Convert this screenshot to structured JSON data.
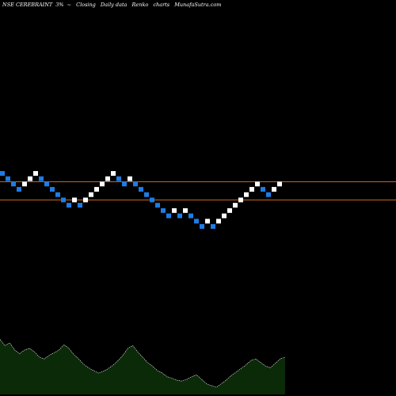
{
  "header": {
    "symbol": "NSE CEREBRAINT",
    "brick_pct": "3%",
    "note": "~",
    "price_type": "Closing",
    "period": "Daily data",
    "chart_kind": "Renko",
    "charts_label": "charts",
    "site": "MunafaSutra.com"
  },
  "colors": {
    "background": "#000000",
    "up_brick": "#ffffff",
    "down_brick": "#1e7ce6",
    "support_line": "#c8641e",
    "volume_fill": "#0a2a08",
    "volume_edge": "#ffffff"
  },
  "chart_data": {
    "type": "renko",
    "brick_size_pct": 3,
    "bricks": [
      {
        "dir": "down",
        "level": 0
      },
      {
        "dir": "down",
        "level": 1
      },
      {
        "dir": "down",
        "level": 2
      },
      {
        "dir": "down",
        "level": 3
      },
      {
        "dir": "up",
        "level": 2
      },
      {
        "dir": "up",
        "level": 1
      },
      {
        "dir": "up",
        "level": 0
      },
      {
        "dir": "down",
        "level": 1
      },
      {
        "dir": "down",
        "level": 2
      },
      {
        "dir": "down",
        "level": 3
      },
      {
        "dir": "down",
        "level": 4
      },
      {
        "dir": "down",
        "level": 5
      },
      {
        "dir": "down",
        "level": 6
      },
      {
        "dir": "up",
        "level": 5
      },
      {
        "dir": "down",
        "level": 6
      },
      {
        "dir": "up",
        "level": 5
      },
      {
        "dir": "up",
        "level": 4
      },
      {
        "dir": "up",
        "level": 3
      },
      {
        "dir": "up",
        "level": 2
      },
      {
        "dir": "up",
        "level": 1
      },
      {
        "dir": "up",
        "level": 0
      },
      {
        "dir": "down",
        "level": 1
      },
      {
        "dir": "down",
        "level": 2
      },
      {
        "dir": "up",
        "level": 1
      },
      {
        "dir": "down",
        "level": 2
      },
      {
        "dir": "down",
        "level": 3
      },
      {
        "dir": "down",
        "level": 4
      },
      {
        "dir": "down",
        "level": 5
      },
      {
        "dir": "down",
        "level": 6
      },
      {
        "dir": "down",
        "level": 7
      },
      {
        "dir": "down",
        "level": 8
      },
      {
        "dir": "up",
        "level": 7
      },
      {
        "dir": "down",
        "level": 8
      },
      {
        "dir": "up",
        "level": 7
      },
      {
        "dir": "down",
        "level": 8
      },
      {
        "dir": "down",
        "level": 9
      },
      {
        "dir": "down",
        "level": 10
      },
      {
        "dir": "up",
        "level": 9
      },
      {
        "dir": "down",
        "level": 10
      },
      {
        "dir": "up",
        "level": 9
      },
      {
        "dir": "up",
        "level": 8
      },
      {
        "dir": "up",
        "level": 7
      },
      {
        "dir": "up",
        "level": 6
      },
      {
        "dir": "up",
        "level": 5
      },
      {
        "dir": "up",
        "level": 4
      },
      {
        "dir": "up",
        "level": 3
      },
      {
        "dir": "up",
        "level": 2
      },
      {
        "dir": "down",
        "level": 3
      },
      {
        "dir": "down",
        "level": 4
      },
      {
        "dir": "up",
        "level": 3
      },
      {
        "dir": "up",
        "level": 2
      }
    ],
    "volume": [
      0.62,
      0.55,
      0.58,
      0.5,
      0.46,
      0.5,
      0.52,
      0.48,
      0.42,
      0.4,
      0.44,
      0.47,
      0.5,
      0.56,
      0.52,
      0.45,
      0.4,
      0.34,
      0.3,
      0.27,
      0.24,
      0.26,
      0.29,
      0.33,
      0.38,
      0.44,
      0.52,
      0.55,
      0.48,
      0.42,
      0.36,
      0.32,
      0.27,
      0.24,
      0.2,
      0.18,
      0.16,
      0.15,
      0.17,
      0.2,
      0.22,
      0.17,
      0.12,
      0.1,
      0.08,
      0.12,
      0.16,
      0.21,
      0.25,
      0.29,
      0.33,
      0.38,
      0.4,
      0.36,
      0.32,
      0.3,
      0.35,
      0.4,
      0.42
    ]
  }
}
